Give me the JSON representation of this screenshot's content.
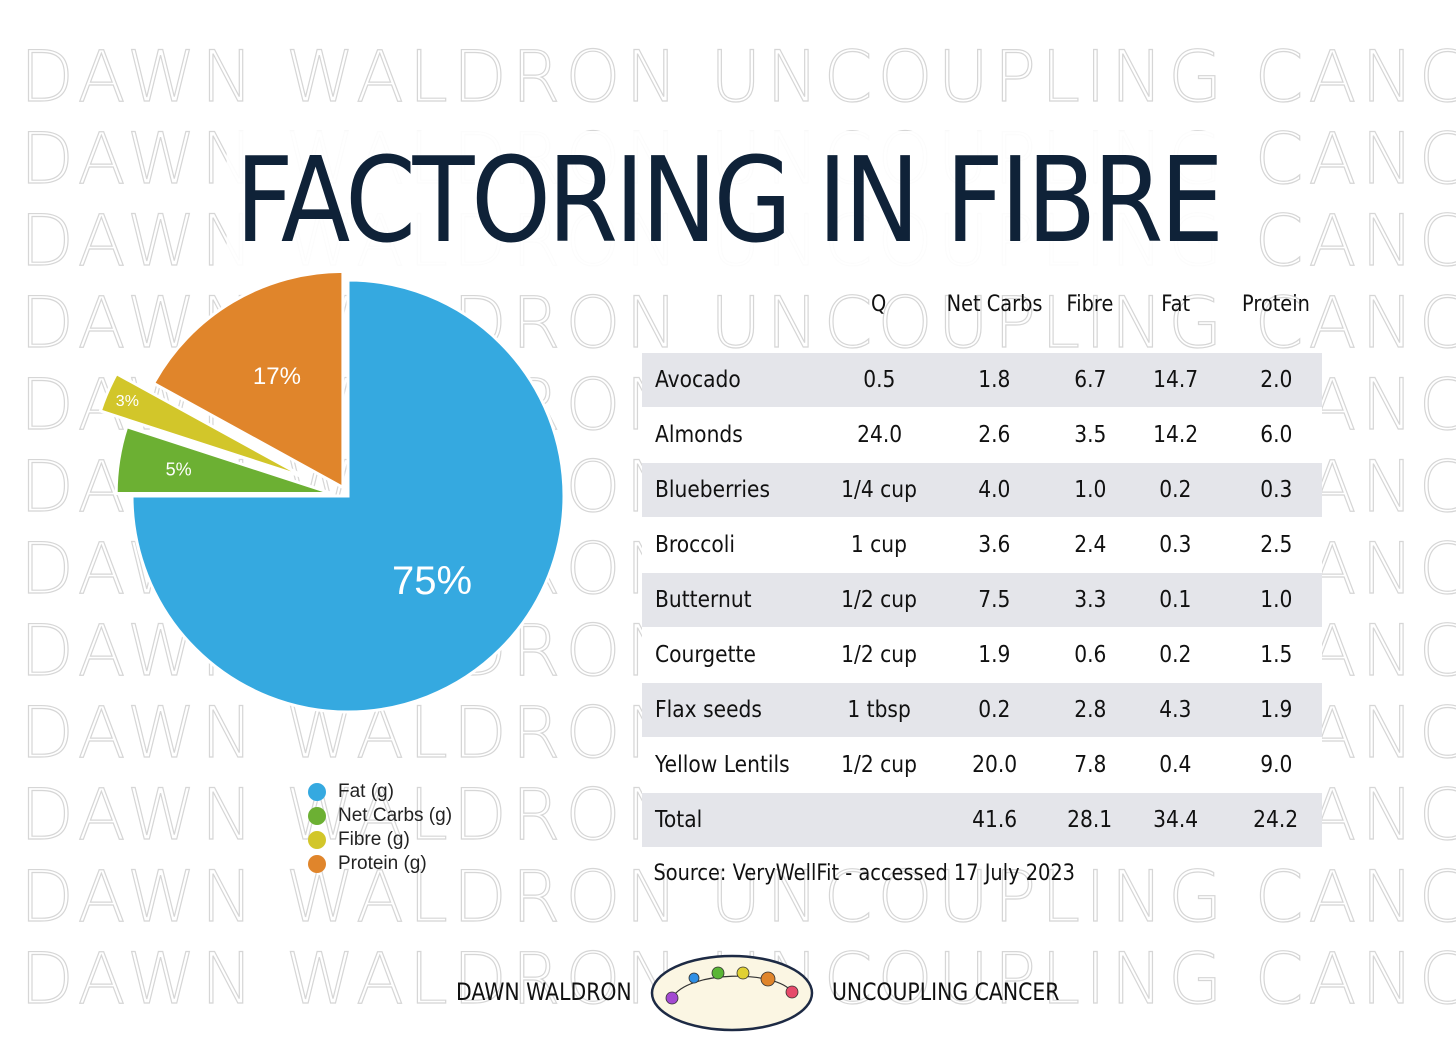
{
  "title": "FACTORING IN FIBRE",
  "watermark_text": "DAWN WALDRON UNCOUPLING CANCER",
  "chart_data": {
    "type": "pie",
    "slices": [
      {
        "label": "Fat (g)",
        "value": 75,
        "display": "75%",
        "color": "#35a9e0",
        "exploded": false
      },
      {
        "label": "Net Carbs (g)",
        "value": 5,
        "display": "5%",
        "color": "#6cb033",
        "exploded": true
      },
      {
        "label": "Fibre (g)",
        "value": 3,
        "display": "3%",
        "color": "#d2c62a",
        "exploded": true
      },
      {
        "label": "Protein (g)",
        "value": 17,
        "display": "17%",
        "color": "#e0852b",
        "exploded": true
      }
    ],
    "legend_position": "bottom"
  },
  "table": {
    "columns": [
      "",
      "Q",
      "Net Carbs",
      "Fibre",
      "Fat",
      "Protein"
    ],
    "rows": [
      [
        "Avocado",
        "0.5",
        "1.8",
        "6.7",
        "14.7",
        "2.0"
      ],
      [
        "Almonds",
        "24.0",
        "2.6",
        "3.5",
        "14.2",
        "6.0"
      ],
      [
        "Blueberries",
        "1/4 cup",
        "4.0",
        "1.0",
        "0.2",
        "0.3"
      ],
      [
        "Broccoli",
        "1 cup",
        "3.6",
        "2.4",
        "0.3",
        "2.5"
      ],
      [
        "Butternut",
        "1/2 cup",
        "7.5",
        "3.3",
        "0.1",
        "1.0"
      ],
      [
        "Courgette",
        "1/2 cup",
        "1.9",
        "0.6",
        "0.2",
        "1.5"
      ],
      [
        "Flax seeds",
        "1 tbsp",
        "0.2",
        "2.8",
        "4.3",
        "1.9"
      ],
      [
        "Yellow Lentils",
        "1/2 cup",
        "20.0",
        "7.8",
        "0.4",
        "9.0"
      ],
      [
        "Total",
        "",
        "41.6",
        "28.1",
        "34.4",
        "24.2"
      ]
    ],
    "source": "Source: VeryWellFit - accessed 17 July 2023"
  },
  "footer": {
    "left": "DAWN WALDRON",
    "right": "UNCOUPLING CANCER",
    "logo_dot_colors": [
      "#a349d1",
      "#2e8fe6",
      "#5ab535",
      "#e0d033",
      "#e0852b",
      "#e64a6a"
    ]
  }
}
